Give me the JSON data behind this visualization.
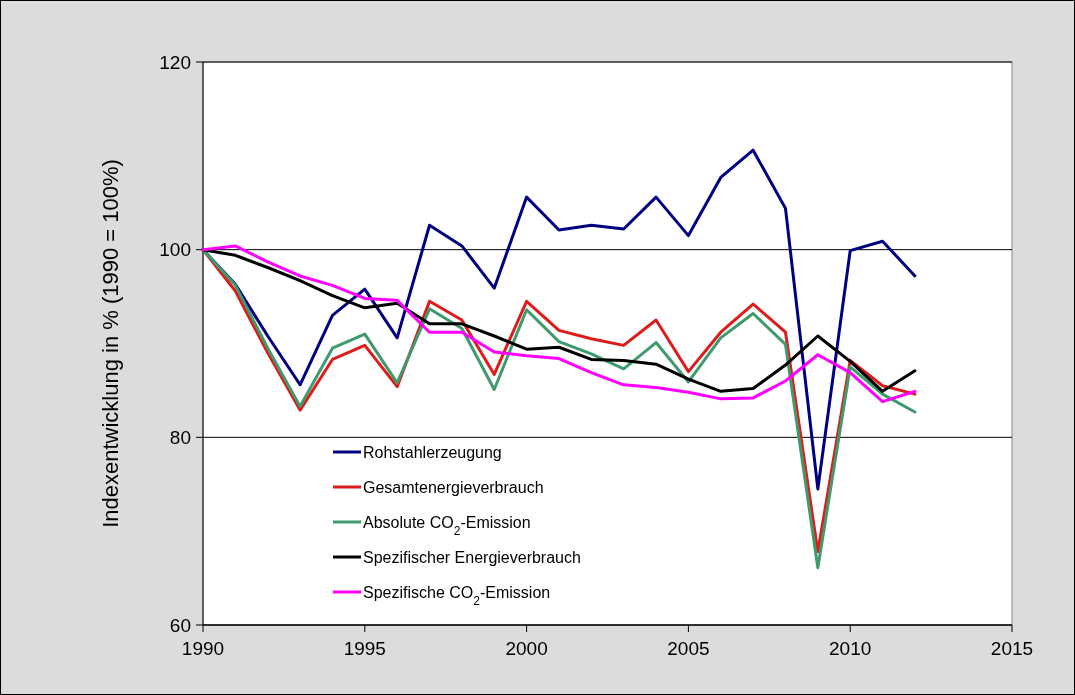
{
  "chart_data": {
    "type": "line",
    "ylabel": "Indexentwicklung in % (1990 = 100%)",
    "x": [
      1990,
      1991,
      1992,
      1993,
      1994,
      1995,
      1996,
      1997,
      1998,
      1999,
      2000,
      2001,
      2002,
      2003,
      2004,
      2005,
      2006,
      2007,
      2008,
      2009,
      2010,
      2011,
      2012
    ],
    "xlim": [
      1990,
      2015
    ],
    "xticks": [
      1990,
      1995,
      2000,
      2005,
      2010,
      2015
    ],
    "ylim": [
      60,
      120
    ],
    "yticks": [
      60,
      80,
      100,
      120
    ],
    "grid": "y",
    "legend": "bottom left",
    "line_style": "solid",
    "marker": "none",
    "series": [
      {
        "name": "Rohstahlerzeugung",
        "color": "#000080",
        "values": [
          100,
          96.3,
          90.8,
          85.6,
          93,
          95.8,
          90.6,
          102.6,
          100.4,
          95.9,
          105.6,
          102.1,
          102.6,
          102.2,
          105.6,
          101.5,
          107.7,
          110.6,
          104.4,
          74.5,
          99.9,
          100.9,
          97.2
        ]
      },
      {
        "name": "Gesamtenergieverbrauch",
        "color": "#dd1c1c",
        "values": [
          100,
          95.6,
          89,
          82.9,
          88.3,
          89.8,
          85.4,
          94.5,
          92.5,
          86.7,
          94.5,
          91.4,
          90.5,
          89.8,
          92.5,
          87,
          91.2,
          94.2,
          91.2,
          67.8,
          88.2,
          85.5,
          84.6
        ]
      },
      {
        "name": "Absolute CO$_{2}$-Emission",
        "color": "#3f9a6e",
        "values": [
          100,
          96.2,
          89.5,
          83.3,
          89.5,
          91,
          85.8,
          93.7,
          91.6,
          85.1,
          93.6,
          90.2,
          88.9,
          87.3,
          90.1,
          85.9,
          90.6,
          93.2,
          89.9,
          66.1,
          87.5,
          84.6,
          82.7
        ]
      },
      {
        "name": "Spezifischer Energieverbrauch",
        "color": "#000000",
        "values": [
          100,
          99.4,
          98.1,
          96.7,
          95.1,
          93.8,
          94.3,
          92.1,
          92.1,
          90.8,
          89.4,
          89.6,
          88.3,
          88.2,
          87.8,
          86.2,
          84.9,
          85.2,
          87.7,
          90.8,
          88.1,
          84.9,
          87.1
        ]
      },
      {
        "name": "Spezifische CO$_{2}$-Emission",
        "color": "#ff00ff",
        "values": [
          100,
          100.4,
          98.7,
          97.2,
          96.2,
          94.8,
          94.6,
          91.2,
          91.2,
          89.1,
          88.7,
          88.4,
          86.9,
          85.6,
          85.3,
          84.8,
          84.1,
          84.2,
          86,
          88.8,
          86.9,
          83.8,
          84.9
        ]
      }
    ]
  }
}
